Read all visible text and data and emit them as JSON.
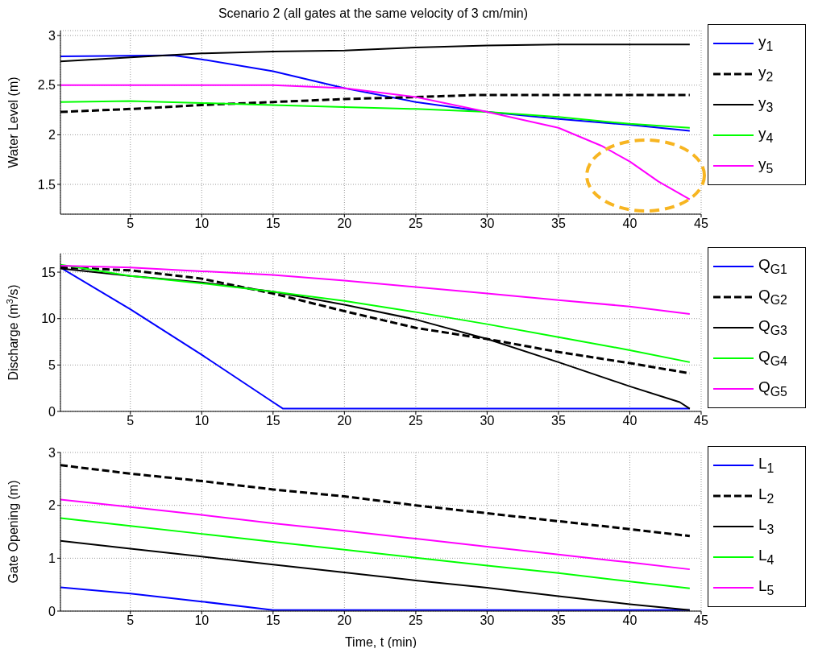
{
  "chart_data": [
    {
      "type": "line",
      "title": "Scenario 2 (all gates at the same velocity of 3 cm/min)",
      "ylabel": "Water Level (m)",
      "xlim": [
        0.1,
        45
      ],
      "xticks": [
        5,
        10,
        15,
        20,
        25,
        30,
        35,
        40,
        45
      ],
      "ylim": [
        1.2,
        3.05
      ],
      "yticks": [
        1.5,
        2,
        2.5,
        3
      ],
      "grid": true,
      "legend": "right",
      "series": [
        {
          "name": "y$_{1}$",
          "color": "#0000ff",
          "x": [
            0.1,
            8,
            10,
            15,
            20,
            25,
            30,
            35,
            40,
            44.2
          ],
          "values": [
            2.79,
            2.8,
            2.76,
            2.64,
            2.47,
            2.33,
            2.23,
            2.16,
            2.1,
            2.04
          ]
        },
        {
          "name": "y$_{2}$",
          "color": "#000000",
          "line_style": "dashed",
          "x": [
            0.1,
            5,
            10,
            15,
            20,
            25,
            29,
            44.2
          ],
          "values": [
            2.23,
            2.26,
            2.3,
            2.33,
            2.36,
            2.38,
            2.4,
            2.4
          ]
        },
        {
          "name": "y$_{3}$",
          "color": "#000000",
          "x": [
            0.1,
            5,
            10,
            15,
            20,
            25,
            30,
            35,
            44.2
          ],
          "values": [
            2.74,
            2.78,
            2.82,
            2.84,
            2.85,
            2.88,
            2.9,
            2.91,
            2.91
          ]
        },
        {
          "name": "y$_{4}$",
          "color": "#00ff00",
          "x": [
            0.1,
            5,
            10,
            15,
            20,
            25,
            30,
            35,
            40,
            44.2
          ],
          "values": [
            2.33,
            2.34,
            2.32,
            2.3,
            2.28,
            2.26,
            2.23,
            2.18,
            2.11,
            2.07
          ]
        },
        {
          "name": "y$_{5}$",
          "color": "#ff00ff",
          "x": [
            0.1,
            15,
            20,
            25,
            30,
            35,
            38,
            40,
            42,
            44.2
          ],
          "values": [
            2.5,
            2.5,
            2.47,
            2.38,
            2.23,
            2.07,
            1.89,
            1.73,
            1.53,
            1.35
          ]
        }
      ]
    },
    {
      "type": "line",
      "ylabel": "Discharge (m$^{3}$/s)",
      "xlim": [
        0.1,
        45
      ],
      "xticks": [
        5,
        10,
        15,
        20,
        25,
        30,
        35,
        40,
        45
      ],
      "ylim": [
        0,
        17
      ],
      "yticks": [
        0,
        5,
        10,
        15
      ],
      "grid": true,
      "legend": "right",
      "series": [
        {
          "name": "Q$_{G1}$",
          "color": "#0000ff",
          "x": [
            0.1,
            5,
            10,
            15,
            15.7,
            44.2
          ],
          "values": [
            15.5,
            11,
            6.1,
            1,
            0.3,
            0.3
          ]
        },
        {
          "name": "Q$_{G2}$",
          "color": "#000000",
          "line_style": "dashed",
          "x": [
            0.1,
            5,
            10,
            15,
            20,
            25,
            30,
            35,
            40,
            44.2
          ],
          "values": [
            15.5,
            15.2,
            14.3,
            12.7,
            10.8,
            9,
            7.8,
            6.4,
            5.2,
            4.1
          ]
        },
        {
          "name": "Q$_{G3}$",
          "color": "#000000",
          "x": [
            0.1,
            5,
            10,
            15,
            20,
            25,
            30,
            35,
            40,
            43.5,
            44.2
          ],
          "values": [
            15.4,
            14.6,
            13.9,
            12.9,
            11.5,
            9.9,
            7.8,
            5.3,
            2.7,
            1,
            0.3
          ]
        },
        {
          "name": "Q$_{G4}$",
          "color": "#00ff00",
          "x": [
            0.1,
            5,
            10,
            15,
            20,
            25,
            30,
            35,
            40,
            44.2
          ],
          "values": [
            15.8,
            14.6,
            13.8,
            12.9,
            11.9,
            10.7,
            9.4,
            8,
            6.6,
            5.3
          ]
        },
        {
          "name": "Q$_{G5}$",
          "color": "#ff00ff",
          "x": [
            0.1,
            5,
            10,
            15,
            20,
            25,
            30,
            35,
            40,
            44.2
          ],
          "values": [
            15.7,
            15.5,
            15.1,
            14.7,
            14.1,
            13.4,
            12.7,
            12,
            11.3,
            10.5
          ]
        }
      ]
    },
    {
      "type": "line",
      "xlabel": "Time, t (min)",
      "ylabel": "Gate Opening (m)",
      "xlim": [
        0.1,
        45
      ],
      "xticks": [
        5,
        10,
        15,
        20,
        25,
        30,
        35,
        40,
        45
      ],
      "ylim": [
        0,
        3
      ],
      "yticks": [
        0,
        1,
        2,
        3
      ],
      "grid": true,
      "legend": "right",
      "series": [
        {
          "name": "L$_{1}$",
          "color": "#0000ff",
          "x": [
            0.1,
            5,
            10,
            15,
            44.2
          ],
          "values": [
            0.45,
            0.33,
            0.18,
            0.02,
            0.02
          ]
        },
        {
          "name": "L$_{2}$",
          "color": "#000000",
          "line_style": "dashed",
          "x": [
            0.1,
            5,
            10,
            15,
            20,
            25,
            30,
            35,
            40,
            44.2
          ],
          "values": [
            2.76,
            2.6,
            2.46,
            2.3,
            2.17,
            2,
            1.85,
            1.7,
            1.55,
            1.42
          ]
        },
        {
          "name": "L$_{3}$",
          "color": "#000000",
          "x": [
            0.1,
            5,
            10,
            15,
            20,
            25,
            30,
            35,
            40,
            44.2
          ],
          "values": [
            1.33,
            1.18,
            1.03,
            0.88,
            0.73,
            0.58,
            0.44,
            0.28,
            0.13,
            0.02
          ]
        },
        {
          "name": "L$_{4}$",
          "color": "#00ff00",
          "x": [
            0.1,
            5,
            10,
            15,
            20,
            25,
            30,
            35,
            40,
            44.2
          ],
          "values": [
            1.76,
            1.61,
            1.46,
            1.31,
            1.16,
            1.01,
            0.86,
            0.72,
            0.56,
            0.43
          ]
        },
        {
          "name": "L$_{5}$",
          "color": "#ff00ff",
          "x": [
            0.1,
            5,
            10,
            15,
            20,
            25,
            30,
            35,
            40,
            44.2
          ],
          "values": [
            2.11,
            1.97,
            1.82,
            1.66,
            1.52,
            1.37,
            1.22,
            1.07,
            0.92,
            0.79
          ]
        }
      ]
    }
  ]
}
